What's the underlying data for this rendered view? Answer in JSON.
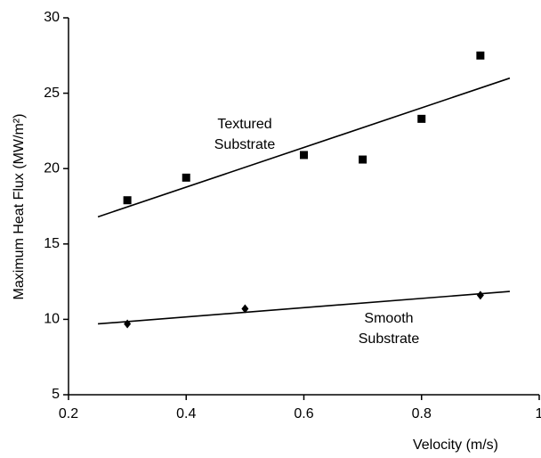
{
  "chart_data": {
    "type": "scatter",
    "x_label": "Velocity (m/s)",
    "y_label": "Maximum Heat Flux (MW/m²)",
    "xlim": [
      0.2,
      1
    ],
    "xticks": [
      0.2,
      0.4,
      0.6,
      0.8,
      1
    ],
    "ylim": [
      5,
      30
    ],
    "yticks": [
      5,
      10,
      15,
      20,
      25,
      30
    ],
    "series": [
      {
        "label": [
          "Textured",
          "Substrate"
        ],
        "marker": "square",
        "color": "#000000",
        "x": [
          0.3,
          0.4,
          0.6,
          0.7,
          0.8,
          0.9
        ],
        "values": [
          17.9,
          19.4,
          20.9,
          20.6,
          23.3,
          27.5
        ],
        "fit": {
          "x": [
            0.25,
            0.95
          ],
          "values": [
            16.8,
            26.0
          ]
        }
      },
      {
        "label": [
          "Smooth",
          "Substrate"
        ],
        "marker": "diamond",
        "color": "#000000",
        "x": [
          0.3,
          0.5,
          0.9
        ],
        "values": [
          9.7,
          10.7,
          11.6
        ],
        "fit": {
          "x": [
            0.25,
            0.95
          ],
          "values": [
            9.7,
            11.85
          ]
        }
      }
    ]
  }
}
